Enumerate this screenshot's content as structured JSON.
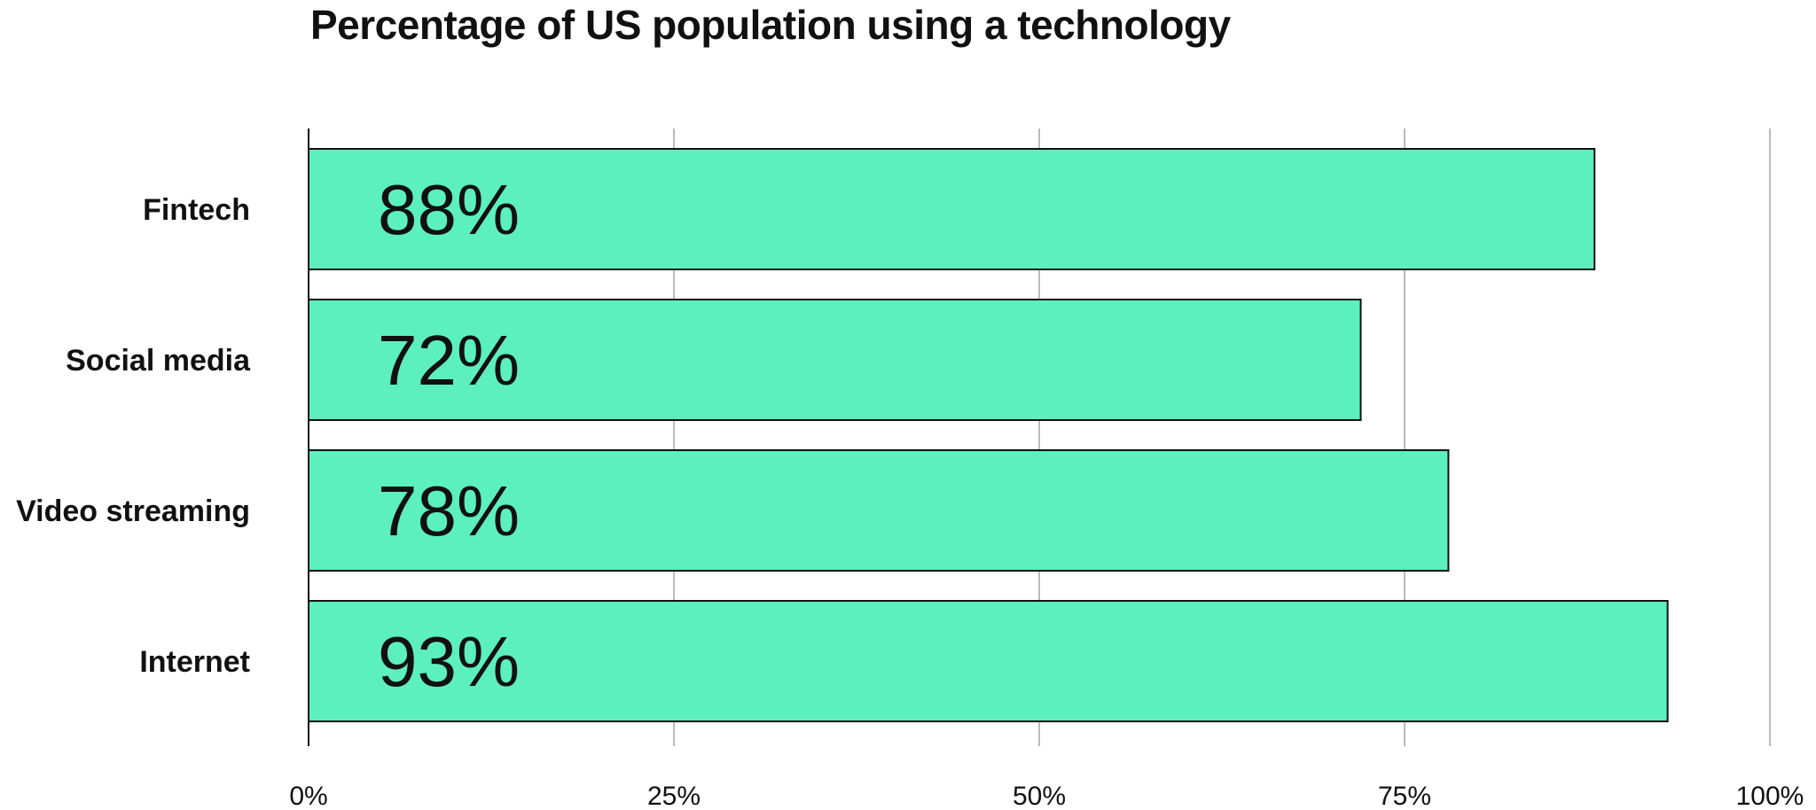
{
  "chart_data": {
    "type": "bar",
    "orientation": "horizontal",
    "title": "Percentage of US population using a technology",
    "categories": [
      "Fintech",
      "Social media",
      "Video streaming",
      "Internet"
    ],
    "values": [
      88,
      72,
      78,
      93
    ],
    "value_labels": [
      "88%",
      "72%",
      "78%",
      "93%"
    ],
    "xlim": [
      0,
      100
    ],
    "x_ticks": [
      0,
      25,
      50,
      75,
      100
    ],
    "x_tick_labels": [
      "0%",
      "25%",
      "50%",
      "75%",
      "100%"
    ],
    "xlabel": "",
    "ylabel": "",
    "grid": "vertical",
    "legend": "none",
    "colors": {
      "bar_fill": "#5cf0be",
      "bar_stroke": "#111111",
      "grid": "#bbbbbb",
      "axis": "#111111"
    }
  }
}
